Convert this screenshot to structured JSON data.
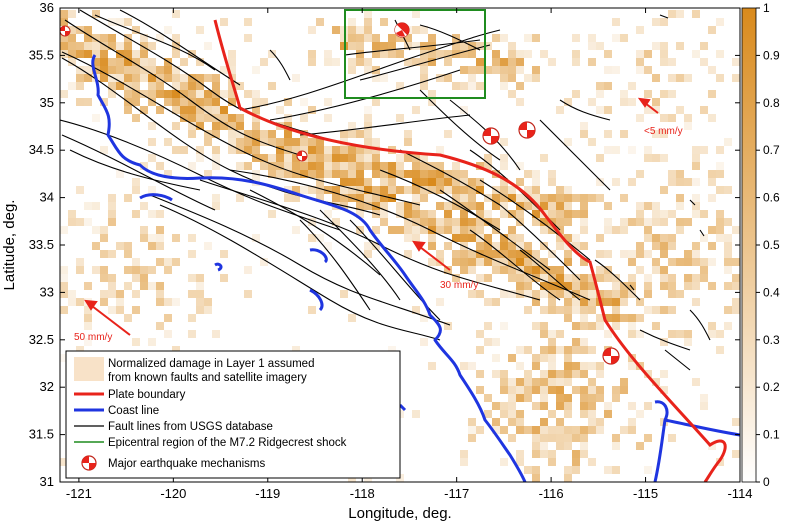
{
  "map": {
    "xlabel": "Longitude, deg.",
    "ylabel": "Latitude, deg.",
    "xlim": [
      -121.2,
      -114
    ],
    "ylim": [
      31,
      36
    ],
    "xticks": [
      "-121",
      "-120",
      "-119",
      "-118",
      "-117",
      "-116",
      "-115",
      "-114"
    ],
    "yticks": [
      "31",
      "31.5",
      "32",
      "32.5",
      "33",
      "33.5",
      "34",
      "34.5",
      "35",
      "35.5",
      "36"
    ],
    "colorbar": {
      "ticks": [
        "0",
        "0.1",
        "0.2",
        "0.3",
        "0.4",
        "0.5",
        "0.6",
        "0.7",
        "0.8",
        "0.9",
        "1"
      ],
      "range": [
        0,
        1
      ],
      "color_low": "#ffffff",
      "color_high": "#d98a1c"
    },
    "arrows": [
      {
        "label": "<5 mm/y",
        "color": "#e8231b"
      },
      {
        "label": "30 mm/y",
        "color": "#e8231b"
      },
      {
        "label": "50 mm/y",
        "color": "#e8231b"
      }
    ],
    "epicentral_box_color": "#1f8c1f",
    "plate_boundary_color": "#e8231b",
    "coast_color": "#1f35e0",
    "fault_color": "#000000"
  },
  "legend": {
    "items": [
      {
        "label": "Normalized damage in Layer 1 assumed",
        "symbol": "damage-swatch"
      },
      {
        "label": "from known faults and satellite imagery",
        "symbol": "none"
      },
      {
        "label": "Plate boundary",
        "symbol": "red-line"
      },
      {
        "label": "Coast line",
        "symbol": "blue-line"
      },
      {
        "label": "Fault lines from USGS database",
        "symbol": "black-line"
      },
      {
        "label": "Epicentral region of the M7.2 Ridgecrest shock",
        "symbol": "green-line"
      },
      {
        "label": "Major earthquake mechanisms",
        "symbol": "beachball"
      }
    ]
  }
}
